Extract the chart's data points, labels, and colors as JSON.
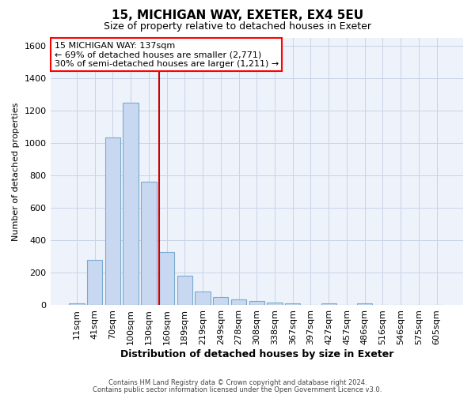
{
  "title_line1": "15, MICHIGAN WAY, EXETER, EX4 5EU",
  "title_line2": "Size of property relative to detached houses in Exeter",
  "xlabel": "Distribution of detached houses by size in Exeter",
  "ylabel": "Number of detached properties",
  "bin_labels": [
    "11sqm",
    "41sqm",
    "70sqm",
    "100sqm",
    "130sqm",
    "160sqm",
    "189sqm",
    "219sqm",
    "249sqm",
    "278sqm",
    "308sqm",
    "338sqm",
    "367sqm",
    "397sqm",
    "427sqm",
    "457sqm",
    "486sqm",
    "516sqm",
    "546sqm",
    "575sqm",
    "605sqm"
  ],
  "bin_values": [
    10,
    280,
    1035,
    1250,
    760,
    330,
    180,
    85,
    50,
    38,
    25,
    17,
    12,
    0,
    12,
    0,
    10,
    0,
    0,
    0,
    0
  ],
  "bar_color": "#c8d8f0",
  "bar_edge_color": "#7aaad0",
  "red_line_bin_index": 5,
  "annotation_text_line1": "15 MICHIGAN WAY: 137sqm",
  "annotation_text_line2": "← 69% of detached houses are smaller (2,771)",
  "annotation_text_line3": "30% of semi-detached houses are larger (1,211) →",
  "annotation_box_facecolor": "white",
  "annotation_box_edgecolor": "red",
  "red_line_color": "#cc0000",
  "grid_color": "#c8d4e8",
  "background_color": "#eef2fa",
  "footer_line1": "Contains HM Land Registry data © Crown copyright and database right 2024.",
  "footer_line2": "Contains public sector information licensed under the Open Government Licence v3.0.",
  "ylim": [
    0,
    1650
  ],
  "yticks": [
    0,
    200,
    400,
    600,
    800,
    1000,
    1200,
    1400,
    1600
  ],
  "title1_fontsize": 11,
  "title2_fontsize": 9,
  "xlabel_fontsize": 9,
  "ylabel_fontsize": 8,
  "tick_fontsize": 8,
  "annot_fontsize": 8,
  "footer_fontsize": 6
}
